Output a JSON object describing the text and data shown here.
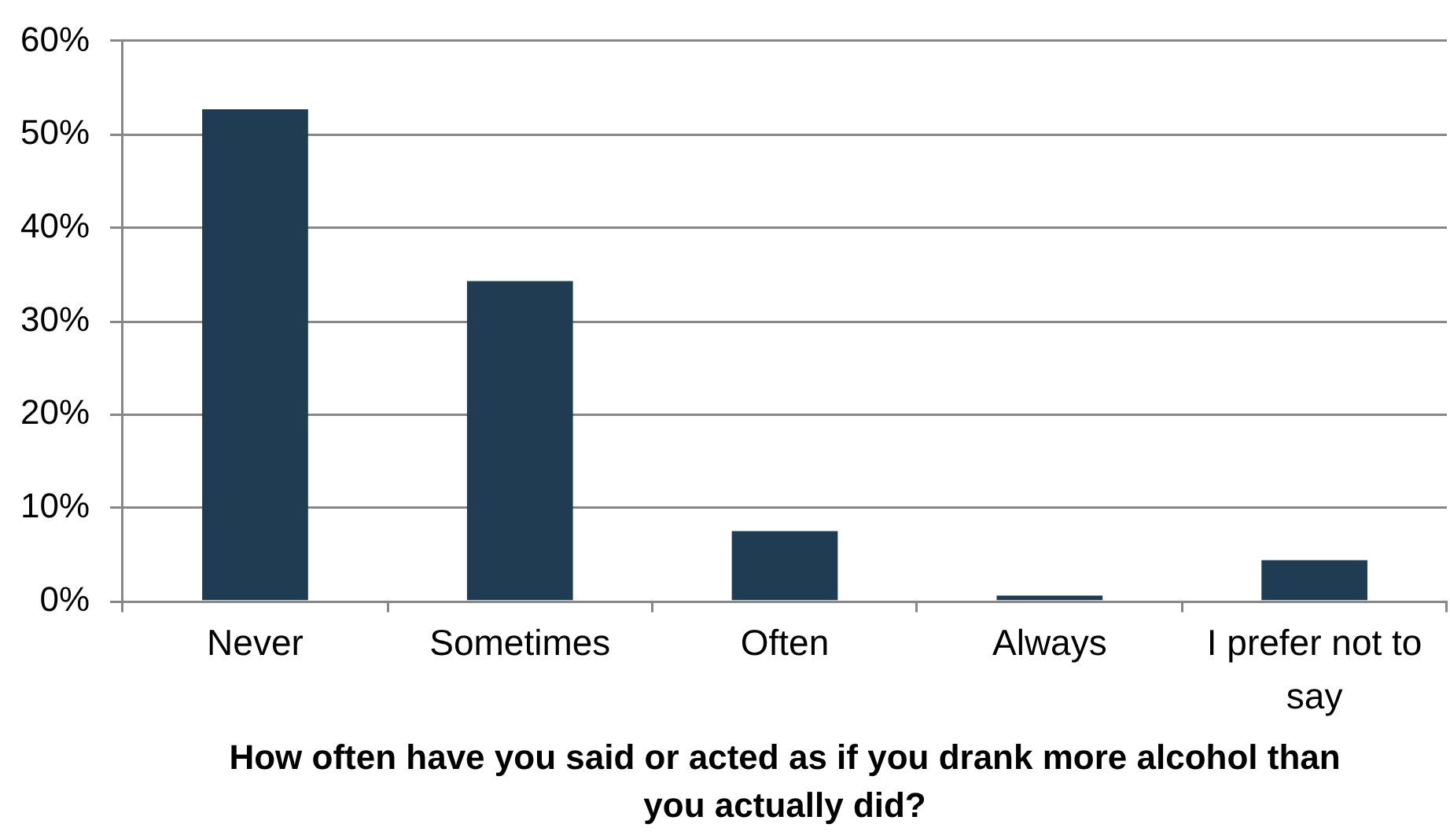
{
  "chart_data": {
    "type": "bar",
    "xlabel": "How often have you said or acted as if you drank more alcohol than you actually did?",
    "categories": [
      "Never",
      "Sometimes",
      "Often",
      "Always",
      "I prefer not to say"
    ],
    "values": [
      52.7,
      34.3,
      7.5,
      0.6,
      4.4
    ],
    "color": "#203c53",
    "ylim": [
      0,
      60
    ],
    "yticks": [
      {
        "value": 0,
        "label": "0%"
      },
      {
        "value": 10,
        "label": "10%"
      },
      {
        "value": 20,
        "label": "20%"
      },
      {
        "value": 30,
        "label": "30%"
      },
      {
        "value": 40,
        "label": "40%"
      },
      {
        "value": 50,
        "label": "50%"
      },
      {
        "value": 60,
        "label": "60%"
      }
    ],
    "grid": "y",
    "legend": false
  }
}
